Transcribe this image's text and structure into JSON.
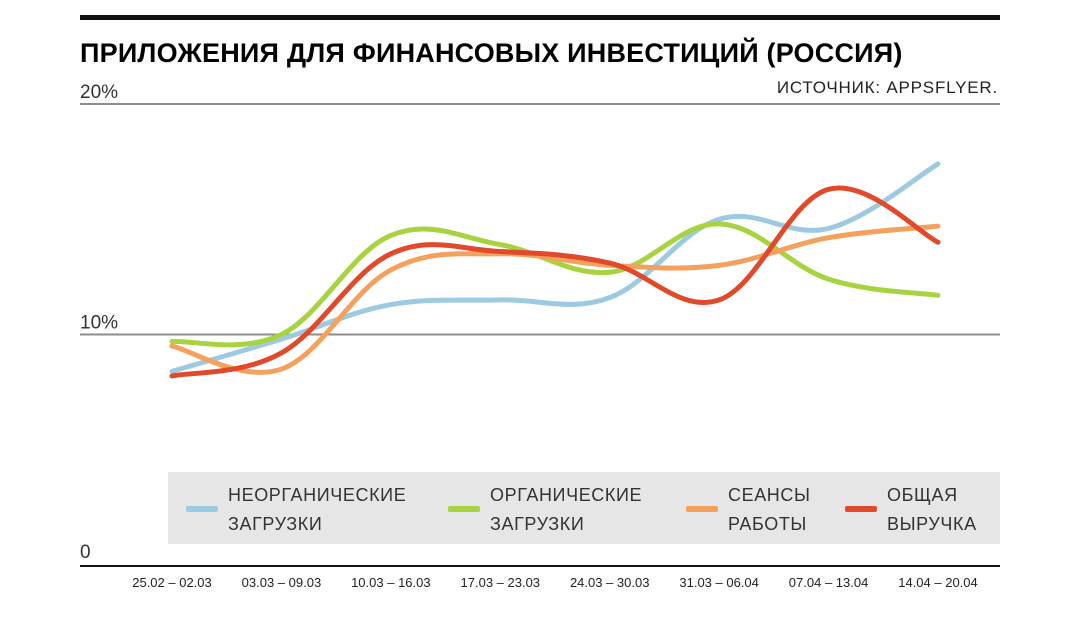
{
  "chart_data": {
    "type": "line",
    "title": "ПРИЛОЖЕНИЯ ДЛЯ ФИНАНСОВЫХ ИНВЕСТИЦИЙ (РОССИЯ)",
    "source": "ИСТОЧНИК: APPSFLYER.",
    "categories": [
      "25.02 – 02.03",
      "03.03 – 09.03",
      "10.03 – 16.03",
      "17.03 – 23.03",
      "24.03 – 30.03",
      "31.03 – 06.04",
      "07.04 – 13.04",
      "14.04 – 20.04"
    ],
    "y_ticks": [
      "0",
      "10%",
      "20%"
    ],
    "ylim": [
      0,
      20
    ],
    "grid": "horizontal",
    "legend_position": "bottom",
    "series": [
      {
        "name": "НЕОРГАНИЧЕСКИЕ ЗАГРУЗКИ",
        "name_lines": [
          "НЕОРГАНИЧЕСКИЕ",
          "ЗАГРУЗКИ"
        ],
        "color": "#9ecae1",
        "values": [
          8.4,
          9.8,
          11.3,
          11.5,
          11.6,
          15.0,
          14.6,
          17.4
        ]
      },
      {
        "name": "ОРГАНИЧЕСКИЕ ЗАГРУЗКИ",
        "name_lines": [
          "ОРГАНИЧЕСКИЕ",
          "ЗАГРУЗКИ"
        ],
        "color": "#a6d33f",
        "values": [
          9.7,
          10.0,
          14.3,
          13.9,
          12.7,
          14.8,
          12.4,
          11.7
        ]
      },
      {
        "name": "СЕАНСЫ РАБОТЫ",
        "name_lines": [
          "СЕАНСЫ",
          "РАБОТЫ"
        ],
        "color": "#f4a15d",
        "values": [
          9.5,
          8.5,
          12.8,
          13.5,
          13.0,
          13.0,
          14.2,
          14.7
        ]
      },
      {
        "name": "ОБЩАЯ ВЫРУЧКА",
        "name_lines": [
          "ОБЩАЯ",
          "ВЫРУЧКА"
        ],
        "color": "#e04a2a",
        "values": [
          8.2,
          9.2,
          13.5,
          13.6,
          13.1,
          11.5,
          16.3,
          14.0
        ]
      }
    ]
  }
}
